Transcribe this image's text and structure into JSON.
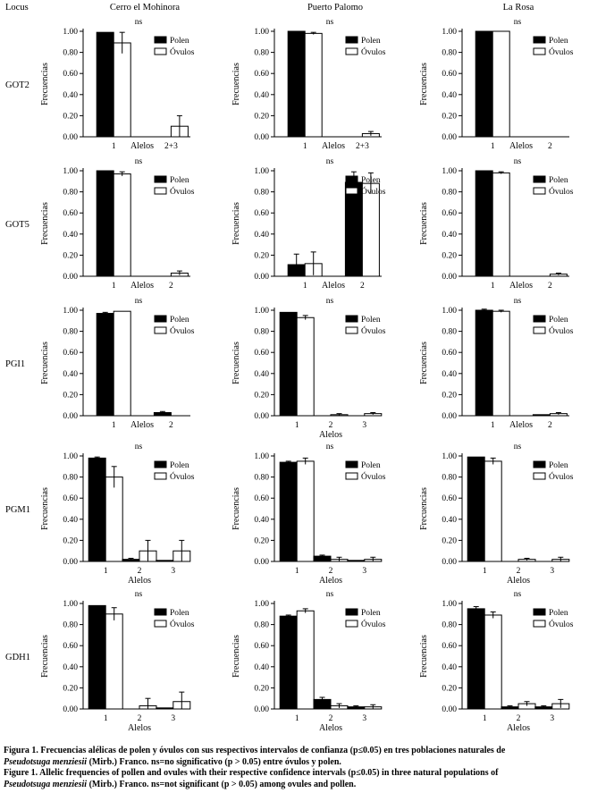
{
  "header": {
    "locus_label": "Locus",
    "populations": [
      "Cerro el Mohinora",
      "Puerto Palomo",
      "La Rosa"
    ]
  },
  "legend": {
    "polen": "Polen",
    "ovulos": "Óvulos"
  },
  "axis": {
    "ylabel": "Frecuencias",
    "xlabel": "Alelos"
  },
  "colors": {
    "polen": "#000000",
    "ovulos": "#ffffff"
  },
  "chart_data": [
    {
      "type": "bar",
      "locus": "GOT2",
      "population": "Cerro el Mohinora",
      "ns": "ns",
      "categories": [
        "1",
        "2+3"
      ],
      "polen": [
        0.99,
        0.0
      ],
      "ovulos": [
        0.89,
        0.1
      ],
      "polen_err": [
        0,
        0
      ],
      "ovulos_err": [
        0.1,
        0.1
      ],
      "ylim": [
        0,
        1
      ]
    },
    {
      "type": "bar",
      "locus": "GOT2",
      "population": "Puerto Palomo",
      "ns": "ns",
      "categories": [
        "1",
        "2+3"
      ],
      "polen": [
        1.0,
        0.0
      ],
      "ovulos": [
        0.98,
        0.03
      ],
      "polen_err": [
        0,
        0
      ],
      "ovulos_err": [
        0.01,
        0.02
      ],
      "ylim": [
        0,
        1
      ]
    },
    {
      "type": "bar",
      "locus": "GOT2",
      "population": "La Rosa",
      "ns": "ns",
      "categories": [
        "1",
        "2"
      ],
      "polen": [
        1.0,
        0.0
      ],
      "ovulos": [
        1.0,
        0.0
      ],
      "polen_err": [
        0,
        0
      ],
      "ovulos_err": [
        0,
        0
      ],
      "ylim": [
        0,
        1
      ]
    },
    {
      "type": "bar",
      "locus": "GOT5",
      "population": "Cerro el Mohinora",
      "ns": "ns",
      "categories": [
        "1",
        "2"
      ],
      "polen": [
        1.0,
        0.0
      ],
      "ovulos": [
        0.97,
        0.03
      ],
      "polen_err": [
        0,
        0
      ],
      "ovulos_err": [
        0.02,
        0.02
      ],
      "ylim": [
        0,
        1
      ]
    },
    {
      "type": "bar",
      "locus": "GOT5",
      "population": "Puerto Palomo",
      "ns": "ns",
      "categories": [
        "1",
        "2"
      ],
      "polen": [
        0.11,
        0.89
      ],
      "ovulos": [
        0.12,
        0.88
      ],
      "polen_err": [
        0.1,
        0.1
      ],
      "ovulos_err": [
        0.11,
        0.1
      ],
      "ylim": [
        0,
        1
      ]
    },
    {
      "type": "bar",
      "locus": "GOT5",
      "population": "La Rosa",
      "ns": "ns",
      "categories": [
        "1",
        "2"
      ],
      "polen": [
        1.0,
        0.0
      ],
      "ovulos": [
        0.98,
        0.02
      ],
      "polen_err": [
        0,
        0
      ],
      "ovulos_err": [
        0.01,
        0.01
      ],
      "ylim": [
        0,
        1
      ]
    },
    {
      "type": "bar",
      "locus": "PGI1",
      "population": "Cerro el Mohinora",
      "ns": "ns",
      "categories": [
        "1",
        "2"
      ],
      "polen": [
        0.97,
        0.03
      ],
      "ovulos": [
        0.99,
        0.0
      ],
      "polen_err": [
        0.01,
        0.01
      ],
      "ovulos_err": [
        0,
        0
      ],
      "ylim": [
        0,
        1
      ]
    },
    {
      "type": "bar",
      "locus": "PGI1",
      "population": "Puerto Palomo",
      "ns": "ns",
      "categories": [
        "1",
        "2",
        "3"
      ],
      "polen": [
        0.98,
        0.0,
        0.0
      ],
      "ovulos": [
        0.93,
        0.01,
        0.02
      ],
      "polen_err": [
        0,
        0,
        0
      ],
      "ovulos_err": [
        0.02,
        0.01,
        0.01
      ],
      "ylim": [
        0,
        1
      ]
    },
    {
      "type": "bar",
      "locus": "PGI1",
      "population": "La Rosa",
      "ns": "ns",
      "categories": [
        "1",
        "2"
      ],
      "polen": [
        1.0,
        0.01
      ],
      "ovulos": [
        0.99,
        0.02
      ],
      "polen_err": [
        0.01,
        0.0
      ],
      "ovulos_err": [
        0.01,
        0.01
      ],
      "ylim": [
        0,
        1
      ]
    },
    {
      "type": "bar",
      "locus": "PGM1",
      "population": "Cerro el Mohinora",
      "ns": "ns",
      "categories": [
        "1",
        "2",
        "3"
      ],
      "polen": [
        0.98,
        0.02,
        0.01
      ],
      "ovulos": [
        0.8,
        0.1,
        0.1
      ],
      "polen_err": [
        0.01,
        0.01,
        0.0
      ],
      "ovulos_err": [
        0.1,
        0.1,
        0.1
      ],
      "ylim": [
        0,
        1
      ]
    },
    {
      "type": "bar",
      "locus": "PGM1",
      "population": "Puerto Palomo",
      "ns": "ns",
      "categories": [
        "1",
        "2",
        "3"
      ],
      "polen": [
        0.94,
        0.05,
        0.01
      ],
      "ovulos": [
        0.95,
        0.02,
        0.02
      ],
      "polen_err": [
        0.01,
        0.01,
        0.0
      ],
      "ovulos_err": [
        0.03,
        0.02,
        0.02
      ],
      "ylim": [
        0,
        1
      ]
    },
    {
      "type": "bar",
      "locus": "PGM1",
      "population": "La Rosa",
      "ns": "ns",
      "categories": [
        "1",
        "2",
        "3"
      ],
      "polen": [
        0.99,
        0.0,
        0.0
      ],
      "ovulos": [
        0.95,
        0.02,
        0.02
      ],
      "polen_err": [
        0,
        0,
        0
      ],
      "ovulos_err": [
        0.03,
        0.01,
        0.02
      ],
      "ylim": [
        0,
        1
      ]
    },
    {
      "type": "bar",
      "locus": "GDH1",
      "population": "Cerro el Mohinora",
      "ns": "ns",
      "categories": [
        "1",
        "2",
        "3"
      ],
      "polen": [
        0.98,
        0.0,
        0.01
      ],
      "ovulos": [
        0.9,
        0.03,
        0.07
      ],
      "polen_err": [
        0,
        0,
        0
      ],
      "ovulos_err": [
        0.06,
        0.07,
        0.09
      ],
      "ylim": [
        0,
        1
      ]
    },
    {
      "type": "bar",
      "locus": "GDH1",
      "population": "Puerto Palomo",
      "ns": "ns",
      "categories": [
        "1",
        "2",
        "3"
      ],
      "polen": [
        0.88,
        0.09,
        0.02
      ],
      "ovulos": [
        0.93,
        0.03,
        0.02
      ],
      "polen_err": [
        0.01,
        0.02,
        0.01
      ],
      "ovulos_err": [
        0.02,
        0.02,
        0.02
      ],
      "ylim": [
        0,
        1
      ]
    },
    {
      "type": "bar",
      "locus": "GDH1",
      "population": "La Rosa",
      "ns": "ns",
      "categories": [
        "1",
        "2",
        "3"
      ],
      "polen": [
        0.95,
        0.02,
        0.02
      ],
      "ovulos": [
        0.89,
        0.05,
        0.05
      ],
      "polen_err": [
        0.02,
        0.01,
        0.01
      ],
      "ovulos_err": [
        0.03,
        0.02,
        0.04
      ],
      "ylim": [
        0,
        1
      ]
    }
  ],
  "caption": {
    "es_lead": "Figura 1. Frecuencias alélicas de polen y óvulos con sus respectivos intervalos de confianza (p≤0.05) en tres poblaciones naturales de",
    "es_species": "Pseudotsuga menziesii",
    "es_tail": " (Mirb.) Franco. ns=no significativo (p > 0.05) entre óvulos y polen.",
    "en_lead": "Figure 1. Allelic frequencies of pollen and ovules with their respective confidence intervals (p≤0.05) in three natural populations of",
    "en_species": "Pseudotsuga menziesii",
    "en_tail": " (Mirb.) Franco. ns=not significant (p > 0.05) among ovules and pollen."
  }
}
